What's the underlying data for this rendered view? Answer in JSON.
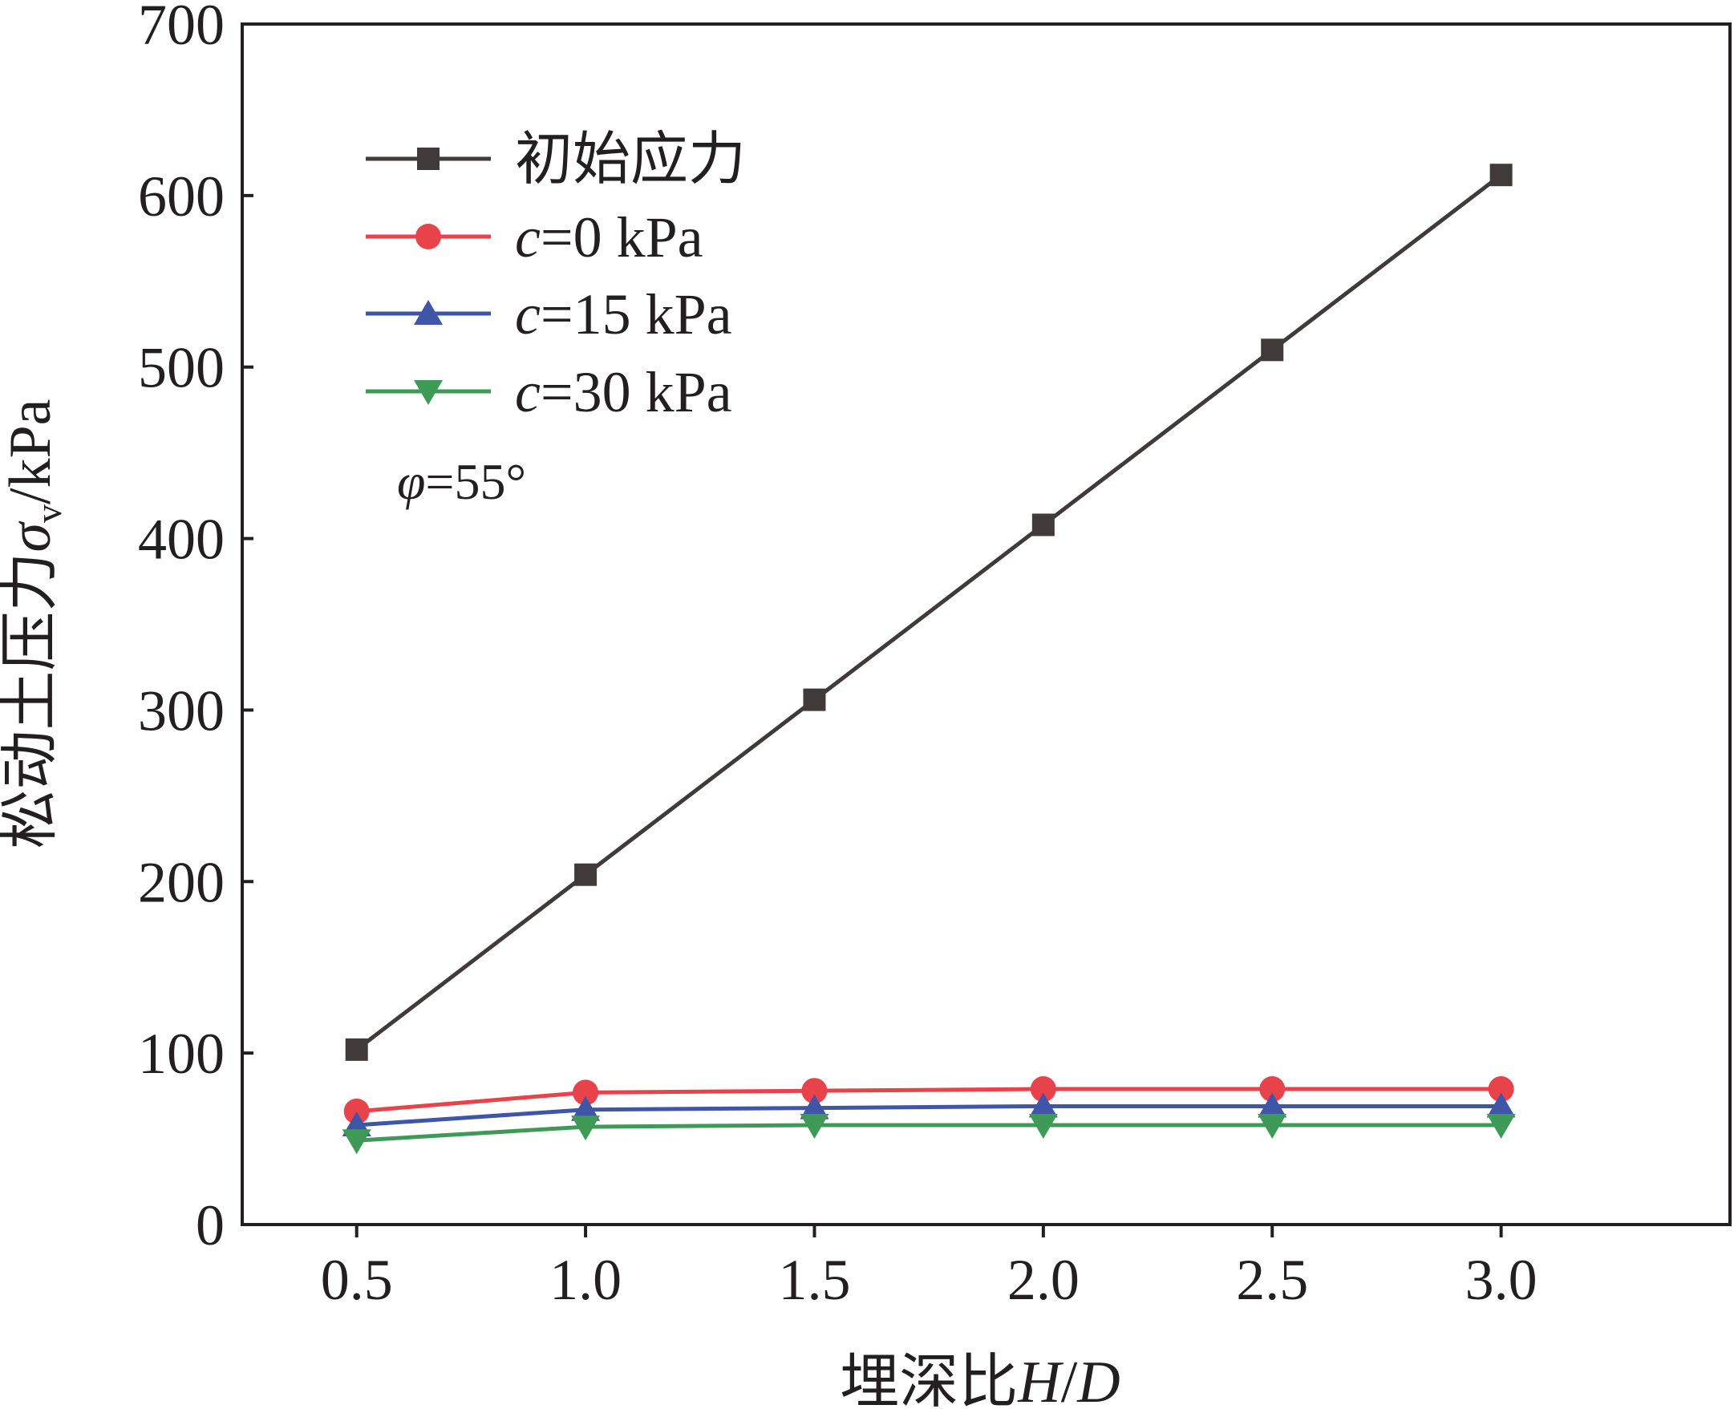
{
  "chart_data": {
    "type": "line",
    "xlabel": {
      "prefix": "埋深比",
      "var1": "H",
      "sep": "/",
      "var2": "D"
    },
    "ylabel": {
      "prefix": "松动土压力",
      "sym": "σ",
      "sub": "v",
      "suffix": "/kPa"
    },
    "xlim": [
      0.25,
      3.5
    ],
    "ylim": [
      0,
      700
    ],
    "x_ticks": [
      "0.5",
      "1.0",
      "1.5",
      "2.0",
      "2.5",
      "3.0"
    ],
    "y_ticks": [
      "0",
      "100",
      "200",
      "300",
      "400",
      "500",
      "600",
      "700"
    ],
    "x": [
      0.5,
      1.0,
      1.5,
      2.0,
      2.5,
      3.0
    ],
    "series": [
      {
        "name": "初始应力",
        "var": "",
        "rest": "",
        "color": "#403a3b",
        "marker": "square",
        "values": [
          102,
          204,
          306,
          408,
          510,
          612
        ]
      },
      {
        "name": "",
        "var": "c",
        "rest": "=0 kPa",
        "color": "#e8434a",
        "marker": "circle",
        "values": [
          66,
          77,
          78,
          79,
          79,
          79
        ]
      },
      {
        "name": "",
        "var": "c",
        "rest": "=15 kPa",
        "color": "#3f56a8",
        "marker": "triangle-up",
        "values": [
          58,
          67,
          68,
          69,
          69,
          69
        ]
      },
      {
        "name": "",
        "var": "c",
        "rest": "=30 kPa",
        "color": "#3f9a57",
        "marker": "triangle-down",
        "values": [
          49,
          57,
          58,
          58,
          58,
          58
        ]
      }
    ],
    "annotation": {
      "sym": "φ",
      "text": "=55°"
    },
    "legend_position": "top-left",
    "grid": false
  }
}
